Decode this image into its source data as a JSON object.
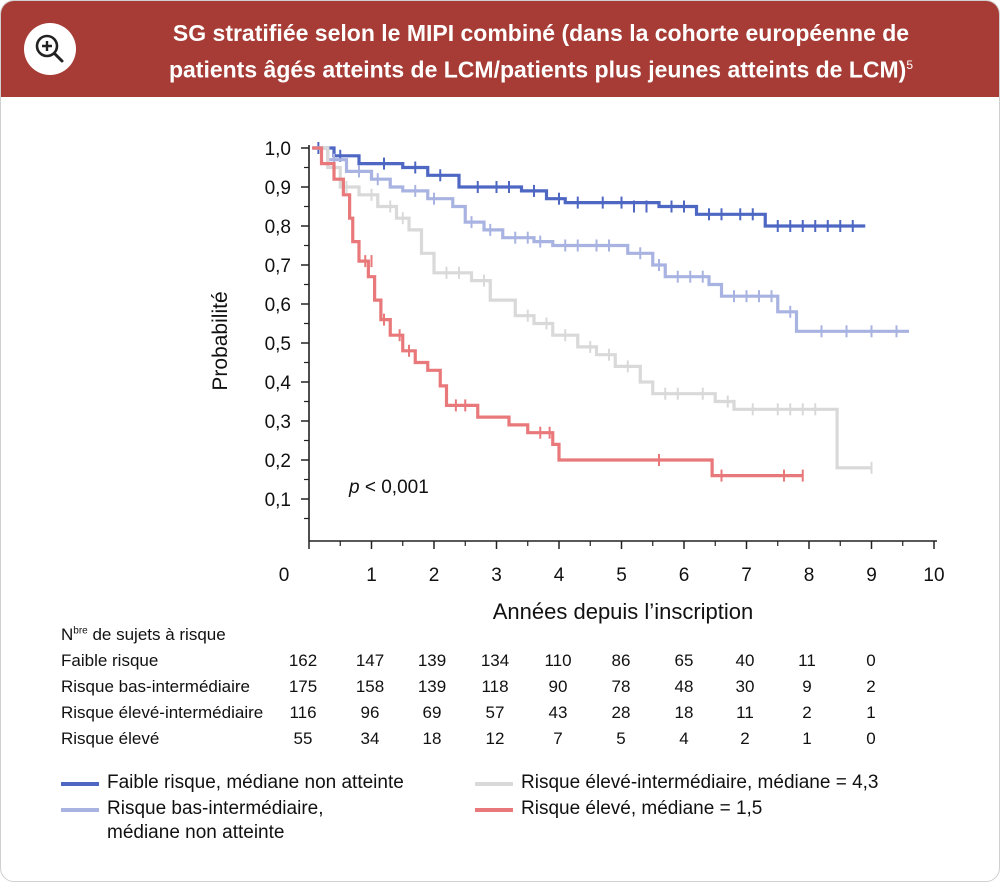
{
  "header": {
    "title_line1": "SG stratifiée selon le MIPI combiné (dans la cohorte européenne de",
    "title_line2": "patients âgés atteints de LCM/patients plus jeunes atteints de LCM)",
    "superscript": "5",
    "bg_color": "#a63c35"
  },
  "zoom_icon": "zoom-in-icon",
  "chart_data": {
    "type": "line",
    "subtype": "kaplan-meier",
    "ylabel": "Probabilité",
    "xlabel": "Années depuis l’inscription",
    "ylim": [
      0,
      1.0
    ],
    "xlim": [
      0,
      10
    ],
    "y_ticks": [
      "1,0",
      "0,9",
      "0,8",
      "0,7",
      "0,6",
      "0,5",
      "0,4",
      "0,3",
      "0,2",
      "0,1"
    ],
    "y_tick_values": [
      1.0,
      0.9,
      0.8,
      0.7,
      0.6,
      0.5,
      0.4,
      0.3,
      0.2,
      0.1
    ],
    "x_ticks": [
      "0",
      "1",
      "2",
      "3",
      "4",
      "5",
      "6",
      "7",
      "8",
      "9",
      "10"
    ],
    "annotation_p": "p",
    "annotation_value": " < 0,001",
    "series": [
      {
        "name": "Faible risque",
        "color": "#4d67c3",
        "points": [
          [
            0.05,
            1.0
          ],
          [
            0.4,
            0.98
          ],
          [
            0.8,
            0.96
          ],
          [
            1.5,
            0.95
          ],
          [
            1.9,
            0.93
          ],
          [
            2.4,
            0.9
          ],
          [
            3.4,
            0.89
          ],
          [
            3.8,
            0.87
          ],
          [
            4.1,
            0.86
          ],
          [
            5.6,
            0.85
          ],
          [
            6.2,
            0.83
          ],
          [
            7.3,
            0.8
          ],
          [
            8.9,
            0.8
          ]
        ],
        "censors": [
          [
            0.15,
            1.0
          ],
          [
            0.5,
            0.98
          ],
          [
            1.2,
            0.96
          ],
          [
            1.7,
            0.95
          ],
          [
            2.1,
            0.93
          ],
          [
            2.7,
            0.9
          ],
          [
            3.0,
            0.9
          ],
          [
            3.2,
            0.9
          ],
          [
            3.6,
            0.89
          ],
          [
            4.0,
            0.87
          ],
          [
            4.3,
            0.86
          ],
          [
            4.7,
            0.86
          ],
          [
            5.0,
            0.86
          ],
          [
            5.2,
            0.85
          ],
          [
            5.4,
            0.85
          ],
          [
            5.8,
            0.85
          ],
          [
            6.0,
            0.85
          ],
          [
            6.4,
            0.83
          ],
          [
            6.6,
            0.83
          ],
          [
            6.9,
            0.83
          ],
          [
            7.1,
            0.83
          ],
          [
            7.5,
            0.8
          ],
          [
            7.7,
            0.8
          ],
          [
            7.9,
            0.8
          ],
          [
            8.1,
            0.8
          ],
          [
            8.3,
            0.8
          ],
          [
            8.5,
            0.8
          ],
          [
            8.7,
            0.8
          ]
        ]
      },
      {
        "name": "Risque bas-intermédiaire",
        "color": "#a9b3e2",
        "points": [
          [
            0.05,
            1.0
          ],
          [
            0.3,
            0.97
          ],
          [
            0.6,
            0.94
          ],
          [
            1.0,
            0.92
          ],
          [
            1.3,
            0.9
          ],
          [
            1.5,
            0.89
          ],
          [
            1.9,
            0.87
          ],
          [
            2.3,
            0.85
          ],
          [
            2.5,
            0.81
          ],
          [
            2.8,
            0.79
          ],
          [
            3.1,
            0.77
          ],
          [
            3.6,
            0.76
          ],
          [
            3.9,
            0.75
          ],
          [
            5.1,
            0.73
          ],
          [
            5.5,
            0.7
          ],
          [
            5.7,
            0.67
          ],
          [
            6.4,
            0.65
          ],
          [
            6.6,
            0.62
          ],
          [
            7.5,
            0.58
          ],
          [
            7.8,
            0.53
          ],
          [
            9.6,
            0.53
          ]
        ],
        "censors": [
          [
            0.4,
            0.97
          ],
          [
            0.8,
            0.94
          ],
          [
            1.1,
            0.92
          ],
          [
            1.7,
            0.89
          ],
          [
            2.0,
            0.87
          ],
          [
            2.6,
            0.81
          ],
          [
            2.9,
            0.79
          ],
          [
            3.3,
            0.77
          ],
          [
            3.5,
            0.77
          ],
          [
            3.7,
            0.76
          ],
          [
            4.1,
            0.75
          ],
          [
            4.3,
            0.75
          ],
          [
            4.6,
            0.75
          ],
          [
            4.8,
            0.75
          ],
          [
            5.3,
            0.73
          ],
          [
            5.6,
            0.7
          ],
          [
            5.9,
            0.67
          ],
          [
            6.1,
            0.67
          ],
          [
            6.3,
            0.67
          ],
          [
            6.8,
            0.62
          ],
          [
            7.0,
            0.62
          ],
          [
            7.2,
            0.62
          ],
          [
            7.4,
            0.62
          ],
          [
            7.7,
            0.58
          ],
          [
            8.2,
            0.53
          ],
          [
            8.6,
            0.53
          ],
          [
            9.0,
            0.53
          ],
          [
            9.4,
            0.53
          ]
        ]
      },
      {
        "name": "Risque élevé-intermédiaire",
        "color": "#d9d9d9",
        "points": [
          [
            0.05,
            1.0
          ],
          [
            0.3,
            0.95
          ],
          [
            0.5,
            0.9
          ],
          [
            0.8,
            0.88
          ],
          [
            1.1,
            0.85
          ],
          [
            1.4,
            0.82
          ],
          [
            1.6,
            0.79
          ],
          [
            1.8,
            0.73
          ],
          [
            2.0,
            0.68
          ],
          [
            2.6,
            0.66
          ],
          [
            2.9,
            0.61
          ],
          [
            3.3,
            0.57
          ],
          [
            3.6,
            0.55
          ],
          [
            3.9,
            0.52
          ],
          [
            4.3,
            0.49
          ],
          [
            4.6,
            0.47
          ],
          [
            4.9,
            0.44
          ],
          [
            5.3,
            0.4
          ],
          [
            5.5,
            0.37
          ],
          [
            6.5,
            0.35
          ],
          [
            6.8,
            0.33
          ],
          [
            8.4,
            0.33
          ],
          [
            8.45,
            0.18
          ],
          [
            9.0,
            0.18
          ]
        ],
        "censors": [
          [
            0.6,
            0.9
          ],
          [
            1.0,
            0.88
          ],
          [
            1.3,
            0.85
          ],
          [
            1.5,
            0.82
          ],
          [
            2.2,
            0.68
          ],
          [
            2.4,
            0.68
          ],
          [
            2.8,
            0.66
          ],
          [
            3.5,
            0.57
          ],
          [
            3.8,
            0.55
          ],
          [
            4.1,
            0.52
          ],
          [
            4.5,
            0.49
          ],
          [
            4.8,
            0.47
          ],
          [
            5.1,
            0.44
          ],
          [
            5.7,
            0.37
          ],
          [
            5.9,
            0.37
          ],
          [
            6.3,
            0.37
          ],
          [
            6.7,
            0.35
          ],
          [
            7.1,
            0.33
          ],
          [
            7.5,
            0.33
          ],
          [
            7.7,
            0.33
          ],
          [
            7.9,
            0.33
          ],
          [
            8.1,
            0.33
          ],
          [
            9.0,
            0.18
          ]
        ]
      },
      {
        "name": "Risque élevé",
        "color": "#e8787a",
        "points": [
          [
            0.05,
            1.0
          ],
          [
            0.2,
            0.96
          ],
          [
            0.4,
            0.92
          ],
          [
            0.55,
            0.88
          ],
          [
            0.65,
            0.82
          ],
          [
            0.7,
            0.76
          ],
          [
            0.8,
            0.71
          ],
          [
            0.95,
            0.67
          ],
          [
            1.05,
            0.61
          ],
          [
            1.15,
            0.56
          ],
          [
            1.3,
            0.52
          ],
          [
            1.5,
            0.48
          ],
          [
            1.7,
            0.45
          ],
          [
            1.9,
            0.43
          ],
          [
            2.1,
            0.39
          ],
          [
            2.2,
            0.34
          ],
          [
            2.7,
            0.31
          ],
          [
            3.2,
            0.29
          ],
          [
            3.5,
            0.27
          ],
          [
            3.9,
            0.24
          ],
          [
            4.0,
            0.2
          ],
          [
            6.4,
            0.2
          ],
          [
            6.45,
            0.16
          ],
          [
            7.9,
            0.16
          ]
        ],
        "censors": [
          [
            0.9,
            0.71
          ],
          [
            1.0,
            0.71
          ],
          [
            1.2,
            0.56
          ],
          [
            1.45,
            0.52
          ],
          [
            1.6,
            0.48
          ],
          [
            2.35,
            0.34
          ],
          [
            2.5,
            0.34
          ],
          [
            3.7,
            0.27
          ],
          [
            3.85,
            0.27
          ],
          [
            5.6,
            0.2
          ],
          [
            6.6,
            0.16
          ],
          [
            7.6,
            0.16
          ],
          [
            7.9,
            0.16
          ]
        ]
      }
    ]
  },
  "risk_table": {
    "title_prefix": "N",
    "title_sup": "bre",
    "title_suffix": " de sujets à risque",
    "rows": [
      {
        "label": "Faible risque",
        "values": [
          "162",
          "147",
          "139",
          "134",
          "110",
          "86",
          "65",
          "40",
          "11",
          "0"
        ]
      },
      {
        "label": "Risque bas-intermédiaire",
        "values": [
          "175",
          "158",
          "139",
          "118",
          "90",
          "78",
          "48",
          "30",
          "9",
          "2"
        ]
      },
      {
        "label": "Risque élevé-intermédiaire",
        "values": [
          "116",
          "96",
          "69",
          "57",
          "43",
          "28",
          "18",
          "11",
          "2",
          "1"
        ]
      },
      {
        "label": "Risque élevé",
        "values": [
          "55",
          "34",
          "18",
          "12",
          "7",
          "5",
          "4",
          "2",
          "1",
          "0"
        ]
      }
    ]
  },
  "legend": [
    {
      "line1": "Faible risque, médiane non atteinte",
      "line2": "",
      "color": "#4d67c3"
    },
    {
      "line1": "Risque bas-intermédiaire,",
      "line2": "médiane non atteinte",
      "color": "#a9b3e2"
    },
    {
      "line1": "Risque élevé-intermédiaire, médiane = 4,3",
      "line2": "",
      "color": "#d9d9d9"
    },
    {
      "line1": "Risque élevé, médiane = 1,5",
      "line2": "",
      "color": "#e8787a"
    }
  ]
}
